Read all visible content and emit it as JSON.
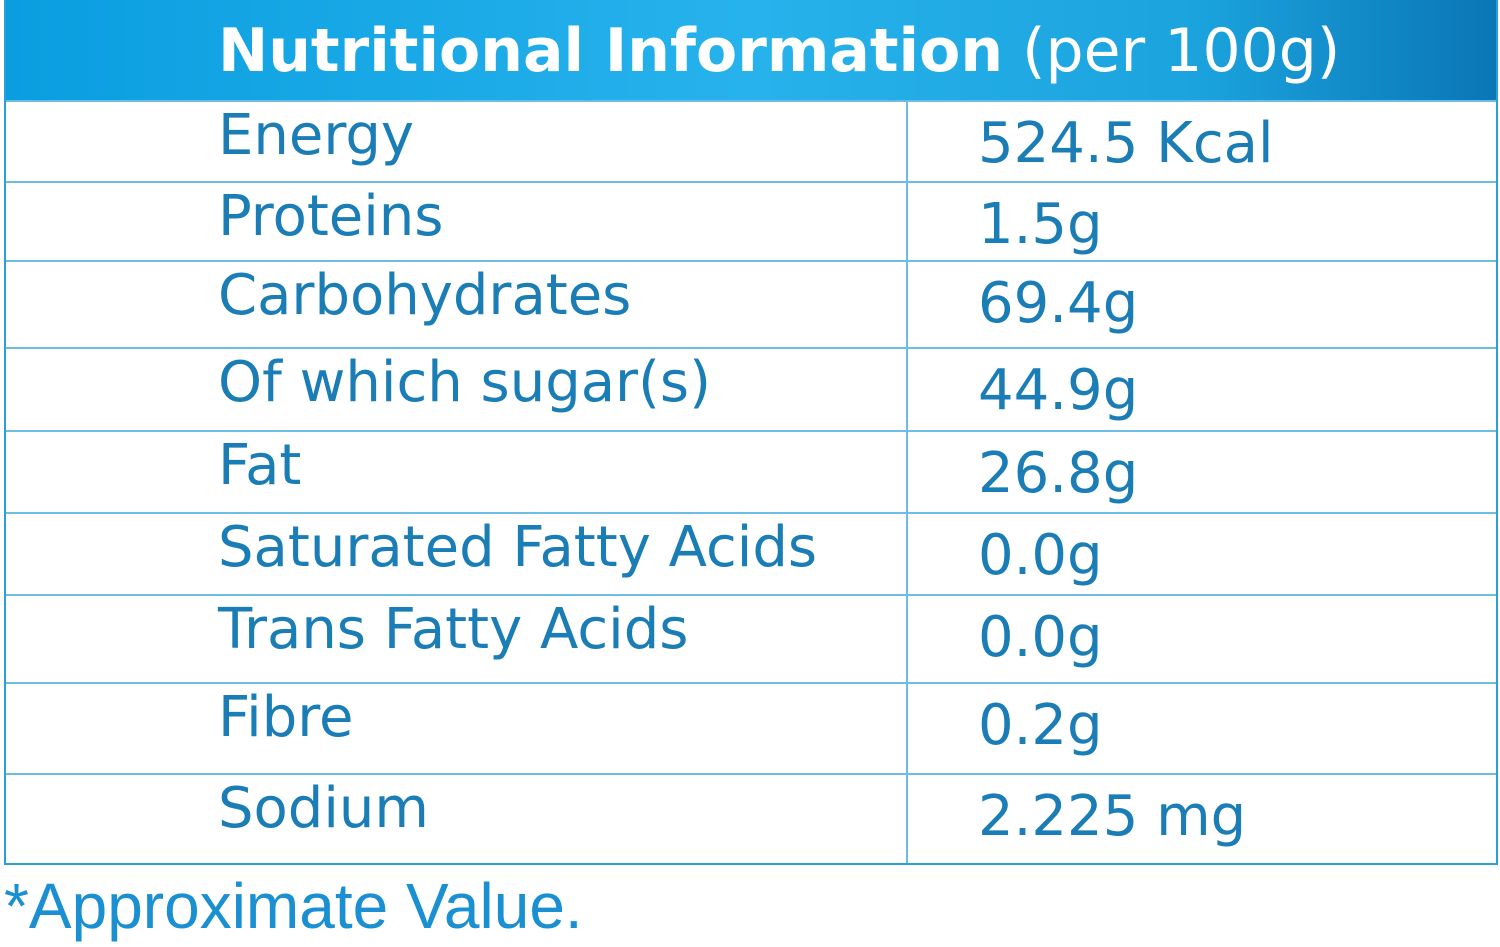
{
  "header": {
    "title": "Nutritional Information",
    "subtitle": "(per 100g)"
  },
  "table": {
    "rows": [
      [
        "Energy",
        "524.5 Kcal"
      ],
      [
        "Proteins",
        "1.5g"
      ],
      [
        "Carbohydrates",
        "69.4g"
      ],
      [
        "Of which sugar(s)",
        "44.9g"
      ],
      [
        "Fat",
        "26.8g"
      ],
      [
        "Saturated Fatty Acids",
        "0.0g"
      ],
      [
        "Trans Fatty Acids",
        "0.0g"
      ],
      [
        "Fibre",
        "0.2g"
      ],
      [
        "Sodium",
        "2.225 mg"
      ]
    ]
  },
  "footnote": "*Approximate Value."
}
